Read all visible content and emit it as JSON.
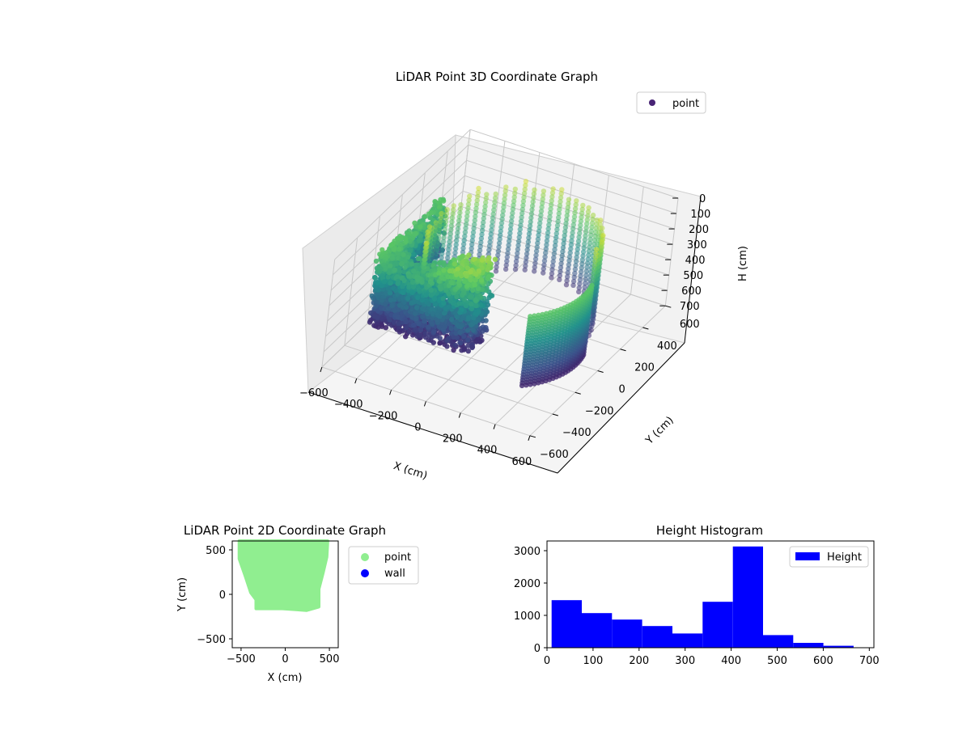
{
  "chart_data": [
    {
      "type": "scatter",
      "projection": "3d",
      "title": "LiDAR Point 3D Coordinate Graph",
      "xlabel": "X (cm)",
      "ylabel": "Y (cm)",
      "zlabel": "H (cm)",
      "xlim": [
        -600,
        600
      ],
      "ylim": [
        -600,
        600
      ],
      "zlim": [
        0,
        700
      ],
      "z_inverted": true,
      "colormap": "viridis",
      "x_ticks": [
        "−600",
        "−400",
        "−200",
        "0",
        "200",
        "400",
        "600"
      ],
      "y_ticks": [
        "−600",
        "−400",
        "−200",
        "0",
        "200",
        "400",
        "600"
      ],
      "z_ticks": [
        "0",
        "100",
        "200",
        "300",
        "400",
        "500",
        "600",
        "700"
      ],
      "legend": {
        "placement": "top-right",
        "entries": [
          {
            "label": "point",
            "color": "#482475"
          }
        ]
      },
      "series": [
        {
          "name": "point",
          "description_shape": "room-shaped ring of wall points, dense near wall and front face"
        }
      ]
    },
    {
      "type": "scatter",
      "title": "LiDAR Point 2D Coordinate Graph",
      "xlabel": "X (cm)",
      "ylabel": "Y (cm)",
      "xlim": [
        -600,
        600
      ],
      "ylim": [
        -600,
        600
      ],
      "x_ticks": [
        "−500",
        "0",
        "500"
      ],
      "y_ticks": [
        "−500",
        "0",
        "500"
      ],
      "footprint_outline": [
        [
          -520,
          600
        ],
        [
          480,
          600
        ],
        [
          470,
          420
        ],
        [
          430,
          250
        ],
        [
          380,
          60
        ],
        [
          380,
          -140
        ],
        [
          240,
          -180
        ],
        [
          120,
          -170
        ],
        [
          -30,
          -160
        ],
        [
          -330,
          -160
        ],
        [
          -330,
          -60
        ],
        [
          -390,
          20
        ],
        [
          -450,
          200
        ],
        [
          -520,
          400
        ]
      ],
      "legend": {
        "placement": "outside-right",
        "entries": [
          {
            "label": "point",
            "color": "#90ee90"
          },
          {
            "label": "wall",
            "color": "#0000ff"
          }
        ]
      }
    },
    {
      "type": "bar",
      "subtype": "histogram",
      "title": "Height Histogram",
      "xlim": [
        0,
        710
      ],
      "ylim": [
        0,
        3300
      ],
      "x_ticks": [
        "0",
        "100",
        "200",
        "300",
        "400",
        "500",
        "600",
        "700"
      ],
      "y_ticks": [
        "0",
        "1000",
        "2000",
        "3000"
      ],
      "bin_edges": [
        10,
        75.6,
        141.2,
        206.8,
        272.4,
        338,
        403.6,
        469.2,
        534.8,
        600.4,
        666
      ],
      "series": [
        {
          "name": "Height",
          "values": [
            1470,
            1070,
            870,
            670,
            440,
            1420,
            3130,
            390,
            150,
            60
          ],
          "color": "#0000ff"
        }
      ],
      "legend": {
        "placement": "top-right",
        "entries": [
          {
            "label": "Height",
            "color": "#0000ff"
          }
        ]
      }
    }
  ]
}
